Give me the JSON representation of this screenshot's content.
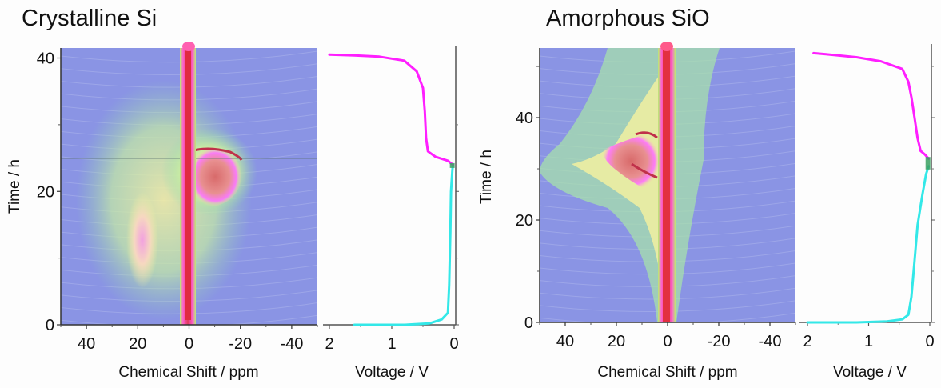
{
  "chart_data": [
    {
      "type": "heatmap",
      "title": "Crystalline Si",
      "xlabel": "Chemical Shift / ppm",
      "ylabel": "Time / h",
      "xlim": [
        50,
        -50
      ],
      "ylim": [
        0,
        41.5
      ],
      "xticks": [
        40,
        20,
        0,
        -20,
        -40
      ],
      "xtick_labels": [
        "40",
        "20",
        "0",
        "-20",
        "-40"
      ],
      "yticks": [
        0,
        20,
        40
      ],
      "ytick_labels": [
        "0",
        "20",
        "40"
      ],
      "features": [
        {
          "name": "main-resonance",
          "shift_ppm": 0,
          "time_range": [
            0,
            41.5
          ],
          "intensity": "high"
        },
        {
          "name": "discharge-end-broad-signal",
          "shift_range_ppm": [
            -25,
            2
          ],
          "time_range": [
            15,
            26
          ],
          "intensity": "high"
        },
        {
          "name": "side-signal",
          "shift_ppm": 12,
          "time_range": [
            9,
            20
          ],
          "intensity": "medium"
        },
        {
          "name": "discharge-charge-boundary",
          "time_h": 25
        }
      ]
    },
    {
      "type": "line",
      "xlabel": "Voltage / V",
      "xlim": [
        2,
        0
      ],
      "xticks": [
        2,
        1,
        0
      ],
      "xtick_labels": [
        "2",
        "1",
        "0"
      ],
      "ylim": [
        0,
        41.5
      ],
      "series": [
        {
          "name": "discharge",
          "color": "#33e8e8",
          "points": [
            [
              1.6,
              0
            ],
            [
              0.8,
              0
            ],
            [
              0.4,
              0.2
            ],
            [
              0.2,
              0.8
            ],
            [
              0.1,
              1.8
            ],
            [
              0.08,
              6
            ],
            [
              0.06,
              14
            ],
            [
              0.05,
              20
            ],
            [
              0.03,
              23
            ],
            [
              0.02,
              24
            ]
          ]
        },
        {
          "name": "charge",
          "color": "#ff1fff",
          "points": [
            [
              0.02,
              24
            ],
            [
              0.1,
              24.6
            ],
            [
              0.3,
              25.2
            ],
            [
              0.42,
              26
            ],
            [
              0.45,
              28
            ],
            [
              0.47,
              32
            ],
            [
              0.5,
              35.5
            ],
            [
              0.6,
              38
            ],
            [
              0.8,
              39.6
            ],
            [
              1.2,
              40.2
            ],
            [
              1.6,
              40.4
            ],
            [
              2.0,
              40.5
            ]
          ]
        }
      ]
    },
    {
      "type": "heatmap",
      "title": "Amorphous SiO",
      "xlabel": "Chemical Shift / ppm",
      "ylabel": "Time / h",
      "xlim": [
        50,
        -50
      ],
      "ylim": [
        0,
        53.6
      ],
      "xticks": [
        40,
        20,
        0,
        -20,
        -40
      ],
      "xtick_labels": [
        "40",
        "20",
        "0",
        "-20",
        "-40"
      ],
      "yticks": [
        0,
        20,
        40
      ],
      "ytick_labels": [
        "0",
        "20",
        "40"
      ],
      "features": [
        {
          "name": "main-resonance",
          "shift_ppm": 0,
          "time_range": [
            0,
            53.6
          ],
          "intensity": "high"
        },
        {
          "name": "lithiated-signal",
          "shift_range_ppm": [
            2,
            25
          ],
          "time_range": [
            26,
            38
          ],
          "intensity": "high"
        },
        {
          "name": "discharge-charge-boundary",
          "time_h": 32
        }
      ]
    },
    {
      "type": "line",
      "xlabel": "Voltage / V",
      "xlim": [
        2,
        0
      ],
      "xticks": [
        2,
        1,
        0
      ],
      "xtick_labels": [
        "2",
        "1",
        "0"
      ],
      "ylim": [
        0,
        53.6
      ],
      "series": [
        {
          "name": "discharge",
          "color": "#33e8e8",
          "points": [
            [
              2.0,
              0
            ],
            [
              1.2,
              0
            ],
            [
              0.7,
              0.2
            ],
            [
              0.45,
              0.6
            ],
            [
              0.35,
              1.5
            ],
            [
              0.3,
              5
            ],
            [
              0.25,
              12
            ],
            [
              0.2,
              19
            ],
            [
              0.12,
              25
            ],
            [
              0.06,
              29
            ],
            [
              0.02,
              30.5
            ]
          ]
        },
        {
          "name": "charge",
          "color": "#ff1fff",
          "points": [
            [
              0.02,
              32
            ],
            [
              0.08,
              32.8
            ],
            [
              0.15,
              33.5
            ],
            [
              0.2,
              36
            ],
            [
              0.25,
              40
            ],
            [
              0.3,
              44
            ],
            [
              0.35,
              47
            ],
            [
              0.45,
              49.5
            ],
            [
              0.8,
              51
            ],
            [
              1.2,
              51.8
            ],
            [
              1.7,
              52.4
            ],
            [
              1.9,
              52.6
            ]
          ]
        }
      ]
    }
  ]
}
